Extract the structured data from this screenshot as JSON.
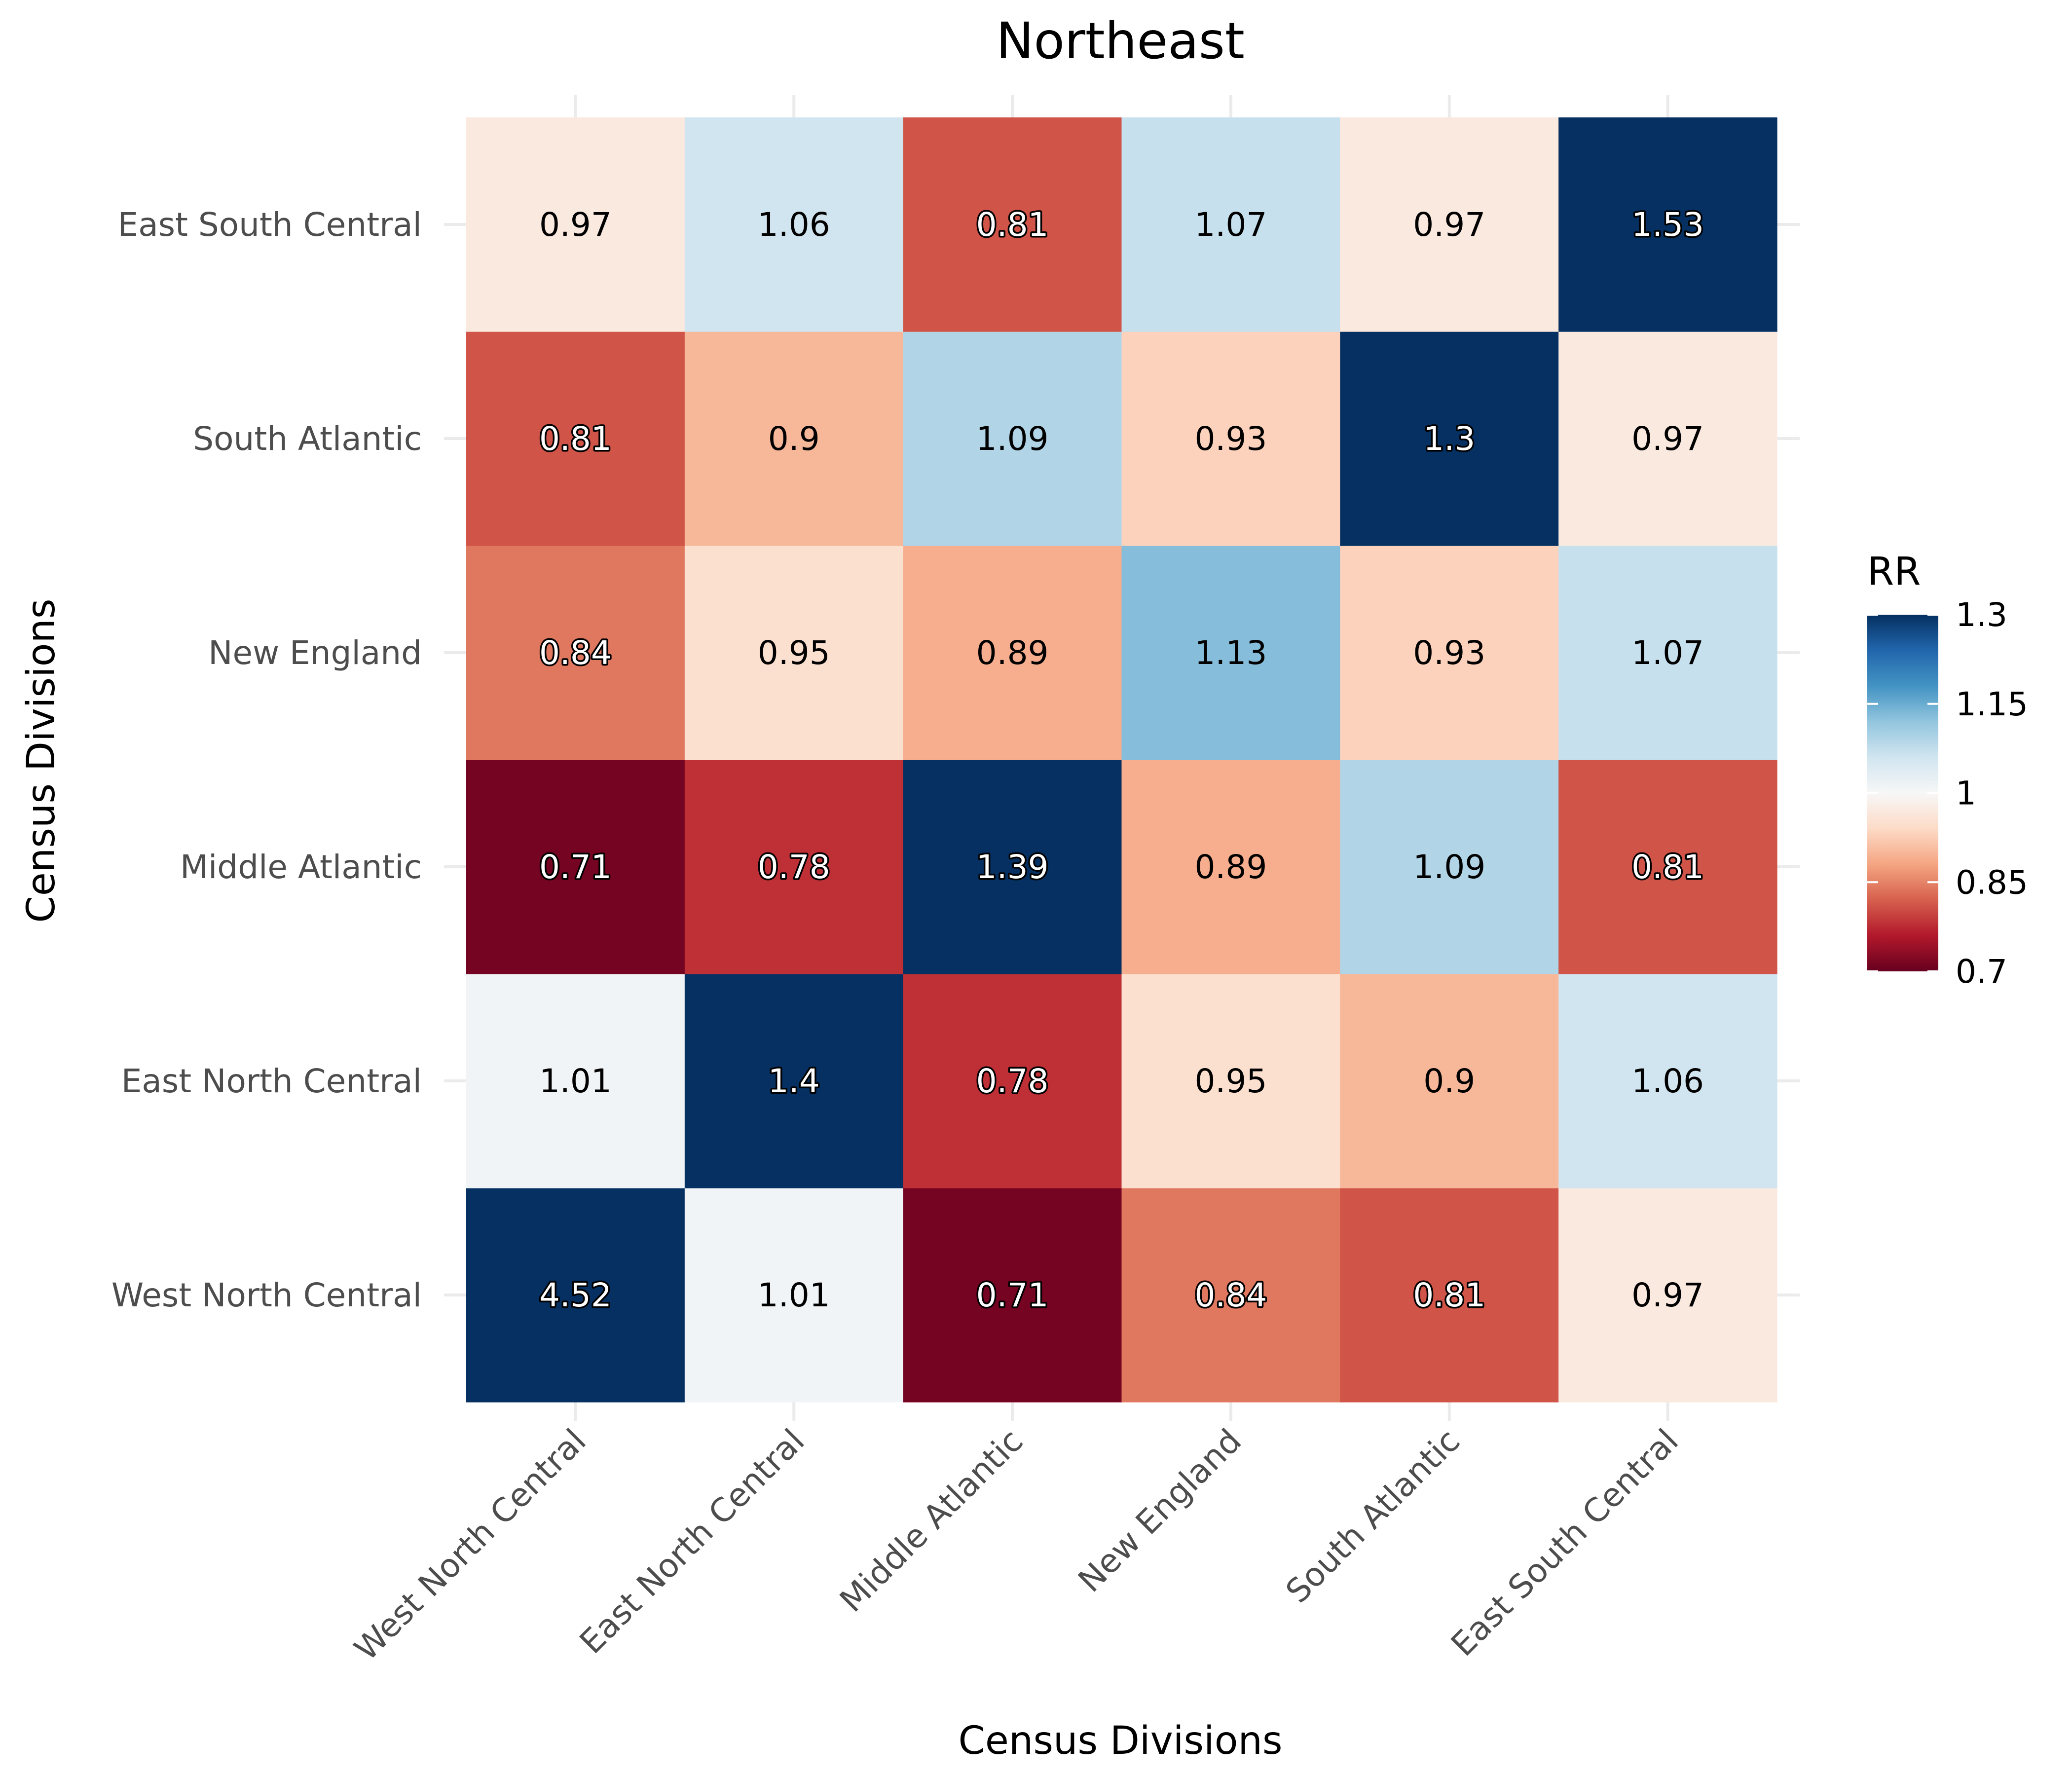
{
  "chart_data": {
    "type": "heatmap",
    "title": "Northeast",
    "xlabel": "Census Divisions",
    "ylabel": "Census Divisions",
    "x_categories": [
      "West North Central",
      "East North Central",
      "Middle Atlantic",
      "New England",
      "South Atlantic",
      "East South Central"
    ],
    "y_categories": [
      "West North Central",
      "East North Central",
      "Middle Atlantic",
      "New England",
      "South Atlantic",
      "East South Central"
    ],
    "values": [
      [
        4.52,
        1.01,
        0.71,
        0.84,
        0.81,
        0.97
      ],
      [
        1.01,
        1.4,
        0.78,
        0.95,
        0.9,
        1.06
      ],
      [
        0.71,
        0.78,
        1.39,
        0.89,
        1.09,
        0.81
      ],
      [
        0.84,
        0.95,
        0.89,
        1.13,
        0.93,
        1.07
      ],
      [
        0.81,
        0.9,
        1.09,
        0.93,
        1.3,
        0.97
      ],
      [
        0.97,
        1.06,
        0.81,
        1.07,
        0.97,
        1.53
      ]
    ],
    "labels": [
      [
        "4.52",
        "1.01",
        "0.71",
        "0.84",
        "0.81",
        "0.97"
      ],
      [
        "1.01",
        "1.4",
        "0.78",
        "0.95",
        "0.9",
        "1.06"
      ],
      [
        "0.71",
        "0.78",
        "1.39",
        "0.89",
        "1.09",
        "0.81"
      ],
      [
        "0.84",
        "0.95",
        "0.89",
        "1.13",
        "0.93",
        "1.07"
      ],
      [
        "0.81",
        "0.9",
        "1.09",
        "0.93",
        "1.3",
        "0.97"
      ],
      [
        "0.97",
        "1.06",
        "0.81",
        "1.07",
        "0.97",
        "1.53"
      ]
    ],
    "legend": {
      "title": "RR",
      "range": [
        0.7,
        1.3
      ],
      "ticks": [
        1.3,
        1.15,
        1,
        0.85,
        0.7
      ],
      "tick_labels": [
        "1.3",
        "1.15",
        "1",
        "0.85",
        "0.7"
      ],
      "placement": "right",
      "colormap": "RdBu"
    },
    "grid": true
  }
}
